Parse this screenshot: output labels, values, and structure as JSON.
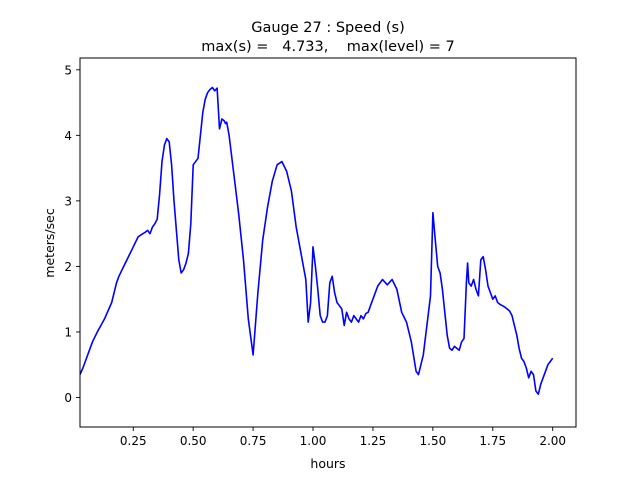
{
  "chart_data": {
    "type": "line",
    "title": "Gauge 27 : Speed (s)",
    "subtitle": "max(s) =   4.733,    max(level) = 7",
    "xlabel": "hours",
    "ylabel": "meters/sec",
    "xlim": [
      0.0278,
      2.0972
    ],
    "ylim": [
      -0.45,
      5.18
    ],
    "xticks": [
      {
        "value": 0.25,
        "label": "0.25"
      },
      {
        "value": 0.5,
        "label": "0.50"
      },
      {
        "value": 0.75,
        "label": "0.75"
      },
      {
        "value": 1.0,
        "label": "1.00"
      },
      {
        "value": 1.25,
        "label": "1.25"
      },
      {
        "value": 1.5,
        "label": "1.50"
      },
      {
        "value": 1.75,
        "label": "1.75"
      },
      {
        "value": 2.0,
        "label": "2.00"
      }
    ],
    "yticks": [
      {
        "value": 0,
        "label": "0"
      },
      {
        "value": 1,
        "label": "1"
      },
      {
        "value": 2,
        "label": "2"
      },
      {
        "value": 3,
        "label": "3"
      },
      {
        "value": 4,
        "label": "4"
      },
      {
        "value": 5,
        "label": "5"
      }
    ],
    "grid": false,
    "series": [
      {
        "color": "#0000ff",
        "x": [
          0.028,
          0.04,
          0.06,
          0.08,
          0.1,
          0.13,
          0.16,
          0.18,
          0.19,
          0.21,
          0.23,
          0.25,
          0.27,
          0.29,
          0.3,
          0.31,
          0.32,
          0.33,
          0.34,
          0.35,
          0.36,
          0.37,
          0.38,
          0.39,
          0.4,
          0.41,
          0.42,
          0.43,
          0.44,
          0.45,
          0.46,
          0.47,
          0.48,
          0.49,
          0.5,
          0.52,
          0.54,
          0.55,
          0.56,
          0.57,
          0.58,
          0.59,
          0.6,
          0.61,
          0.62,
          0.63,
          0.635,
          0.64,
          0.65,
          0.67,
          0.69,
          0.71,
          0.73,
          0.75,
          0.77,
          0.79,
          0.81,
          0.83,
          0.85,
          0.87,
          0.89,
          0.91,
          0.93,
          0.95,
          0.97,
          0.98,
          0.99,
          1.0,
          1.01,
          1.02,
          1.03,
          1.04,
          1.05,
          1.06,
          1.07,
          1.08,
          1.09,
          1.1,
          1.11,
          1.12,
          1.13,
          1.14,
          1.15,
          1.16,
          1.17,
          1.18,
          1.19,
          1.2,
          1.21,
          1.22,
          1.23,
          1.24,
          1.25,
          1.27,
          1.29,
          1.31,
          1.33,
          1.35,
          1.37,
          1.39,
          1.41,
          1.43,
          1.44,
          1.45,
          1.46,
          1.47,
          1.48,
          1.49,
          1.5,
          1.51,
          1.52,
          1.53,
          1.54,
          1.55,
          1.56,
          1.57,
          1.58,
          1.59,
          1.6,
          1.61,
          1.62,
          1.63,
          1.64,
          1.645,
          1.65,
          1.66,
          1.67,
          1.68,
          1.69,
          1.7,
          1.71,
          1.72,
          1.73,
          1.74,
          1.75,
          1.76,
          1.77,
          1.78,
          1.79,
          1.8,
          1.81,
          1.82,
          1.83,
          1.84,
          1.85,
          1.86,
          1.87,
          1.88,
          1.89,
          1.9,
          1.91,
          1.92,
          1.93,
          1.94,
          1.95,
          1.96,
          1.97,
          1.98,
          1.99,
          2.0
        ],
        "y": [
          0.35,
          0.45,
          0.65,
          0.85,
          1.0,
          1.2,
          1.45,
          1.75,
          1.85,
          2.0,
          2.15,
          2.3,
          2.45,
          2.5,
          2.52,
          2.55,
          2.5,
          2.6,
          2.65,
          2.72,
          3.1,
          3.6,
          3.85,
          3.95,
          3.9,
          3.55,
          3.0,
          2.55,
          2.1,
          1.9,
          1.95,
          2.05,
          2.2,
          2.65,
          3.55,
          3.65,
          4.35,
          4.55,
          4.65,
          4.7,
          4.73,
          4.68,
          4.72,
          4.1,
          4.25,
          4.22,
          4.18,
          4.2,
          4.0,
          3.4,
          2.8,
          2.1,
          1.2,
          0.65,
          1.6,
          2.4,
          2.9,
          3.3,
          3.55,
          3.6,
          3.45,
          3.15,
          2.6,
          2.2,
          1.8,
          1.15,
          1.45,
          2.3,
          2.0,
          1.65,
          1.25,
          1.15,
          1.15,
          1.25,
          1.75,
          1.85,
          1.6,
          1.45,
          1.4,
          1.35,
          1.1,
          1.3,
          1.2,
          1.15,
          1.25,
          1.2,
          1.15,
          1.25,
          1.2,
          1.28,
          1.3,
          1.4,
          1.5,
          1.7,
          1.8,
          1.72,
          1.8,
          1.65,
          1.3,
          1.15,
          0.85,
          0.4,
          0.35,
          0.5,
          0.65,
          0.95,
          1.25,
          1.55,
          2.82,
          2.4,
          2.0,
          1.9,
          1.65,
          1.3,
          0.95,
          0.75,
          0.72,
          0.78,
          0.75,
          0.72,
          0.85,
          0.9,
          1.75,
          2.05,
          1.75,
          1.7,
          1.8,
          1.65,
          1.55,
          2.1,
          2.15,
          1.95,
          1.7,
          1.6,
          1.5,
          1.55,
          1.45,
          1.42,
          1.4,
          1.38,
          1.35,
          1.32,
          1.25,
          1.1,
          0.95,
          0.75,
          0.6,
          0.55,
          0.45,
          0.3,
          0.4,
          0.35,
          0.1,
          0.05,
          0.2,
          0.3,
          0.4,
          0.5,
          0.55,
          0.6
        ]
      }
    ]
  }
}
